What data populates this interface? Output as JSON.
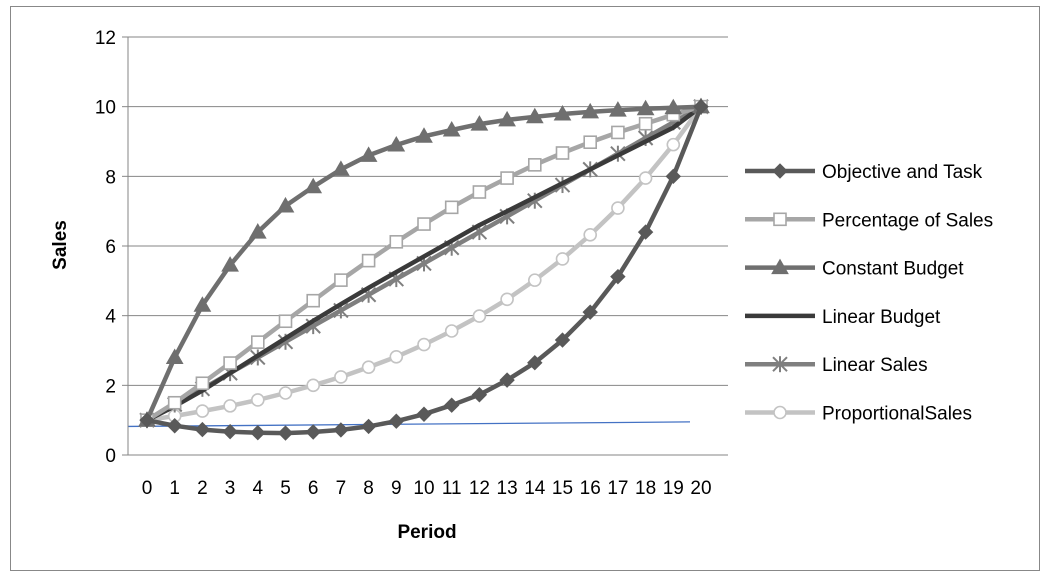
{
  "chart_data": {
    "type": "line",
    "xlabel": "Period",
    "ylabel": "Sales",
    "ylim": [
      0,
      12
    ],
    "yticks": [
      0,
      2,
      4,
      6,
      8,
      10,
      12
    ],
    "x": [
      0,
      1,
      2,
      3,
      4,
      5,
      6,
      7,
      8,
      9,
      10,
      11,
      12,
      13,
      14,
      15,
      16,
      17,
      18,
      19,
      20
    ],
    "x_tick_labels": [
      "0",
      "1",
      "2",
      "3",
      "4",
      "5",
      "6",
      "7",
      "8",
      "9",
      "10",
      "11",
      "12",
      "13",
      "14",
      "15",
      "16",
      "17",
      "18",
      "19",
      "20"
    ],
    "grid": "horizontal",
    "legend_position": "right",
    "series": [
      {
        "name": "Objective and Task",
        "color": "#595959",
        "marker": "diamond",
        "values": [
          1.0,
          0.84,
          0.73,
          0.67,
          0.64,
          0.63,
          0.66,
          0.72,
          0.82,
          0.97,
          1.17,
          1.43,
          1.73,
          2.15,
          2.65,
          3.3,
          4.1,
          5.12,
          6.4,
          8.0,
          10.0
        ]
      },
      {
        "name": "Percentage of Sales",
        "color": "#a6a6a6",
        "marker": "square",
        "values": [
          1.0,
          1.5,
          2.06,
          2.64,
          3.24,
          3.84,
          4.43,
          5.02,
          5.58,
          6.12,
          6.63,
          7.11,
          7.55,
          7.95,
          8.33,
          8.67,
          8.98,
          9.26,
          9.51,
          9.77,
          10.0
        ]
      },
      {
        "name": "Constant Budget",
        "color": "#6f6f6f",
        "marker": "triangle",
        "values": [
          1.0,
          2.8,
          4.3,
          5.45,
          6.4,
          7.15,
          7.7,
          8.2,
          8.6,
          8.9,
          9.15,
          9.33,
          9.5,
          9.62,
          9.71,
          9.79,
          9.85,
          9.9,
          9.94,
          9.97,
          10.0
        ]
      },
      {
        "name": "Linear Budget",
        "color": "#3a3a3a",
        "marker": "none",
        "values": [
          1.0,
          1.4,
          1.85,
          2.35,
          2.85,
          3.35,
          3.85,
          4.33,
          4.8,
          5.25,
          5.7,
          6.15,
          6.6,
          7.0,
          7.4,
          7.8,
          8.2,
          8.6,
          9.0,
          9.4,
          10.0
        ]
      },
      {
        "name": "Linear Sales",
        "color": "#7f7f7f",
        "marker": "star",
        "values": [
          1.0,
          1.45,
          1.9,
          2.35,
          2.8,
          3.25,
          3.7,
          4.15,
          4.6,
          5.05,
          5.5,
          5.95,
          6.4,
          6.85,
          7.3,
          7.75,
          8.2,
          8.65,
          9.1,
          9.55,
          10.0
        ]
      },
      {
        "name": "ProportionalSales",
        "color": "#c3c3c3",
        "marker": "circle",
        "values": [
          1.0,
          1.12,
          1.26,
          1.41,
          1.58,
          1.78,
          2.0,
          2.24,
          2.52,
          2.82,
          3.17,
          3.56,
          3.99,
          4.47,
          5.02,
          5.63,
          6.32,
          7.09,
          7.95,
          8.91,
          10.0
        ]
      }
    ],
    "reference_line": {
      "color": "#4472c4",
      "y_start": 0.82,
      "y_end": 0.95
    }
  }
}
